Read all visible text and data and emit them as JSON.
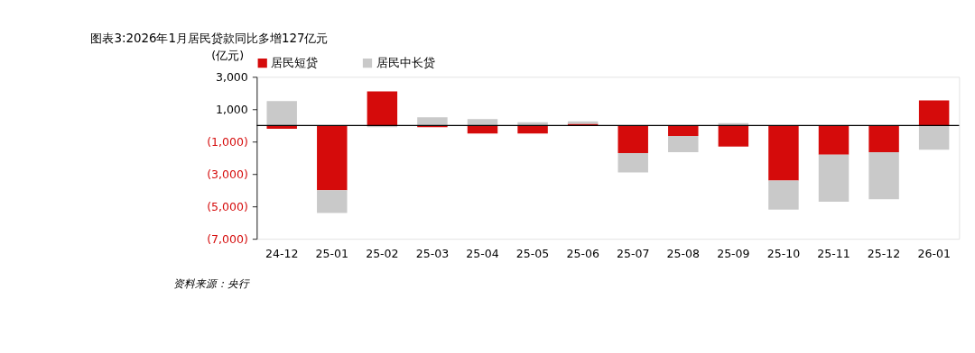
{
  "chart_data": {
    "type": "bar",
    "stacked": true,
    "title": "图表3:2026年1月居民贷款同比多增127亿元",
    "ylabel": "(亿元)",
    "categories": [
      "24-12",
      "25-01",
      "25-02",
      "25-03",
      "25-04",
      "25-05",
      "25-06",
      "25-07",
      "25-08",
      "25-09",
      "25-10",
      "25-11",
      "25-12",
      "26-01"
    ],
    "series": [
      {
        "name": "居民短贷",
        "color": "#d50b0b",
        "values": [
          -200,
          -4000,
          2100,
          -100,
          -500,
          -500,
          100,
          -1700,
          -650,
          -1300,
          -3400,
          -1800,
          -1650,
          1550
        ]
      },
      {
        "name": "居民中长贷",
        "color": "#c9c9c9",
        "values": [
          1500,
          -1400,
          -100,
          500,
          400,
          200,
          150,
          -1200,
          -1000,
          150,
          -1800,
          -2900,
          -2900,
          -1500
        ]
      }
    ],
    "ylim": [
      -7000,
      3000
    ],
    "yticks": [
      {
        "value": -7000,
        "label": "(7,000)"
      },
      {
        "value": -5000,
        "label": "(5,000)"
      },
      {
        "value": -3000,
        "label": "(3,000)"
      },
      {
        "value": -1000,
        "label": "(1,000)"
      },
      {
        "value": 1000,
        "label": "1,000"
      },
      {
        "value": 3000,
        "label": "3,000"
      }
    ],
    "legend": "top",
    "grid": false,
    "annotations": [
      "资料来源：央行"
    ]
  }
}
